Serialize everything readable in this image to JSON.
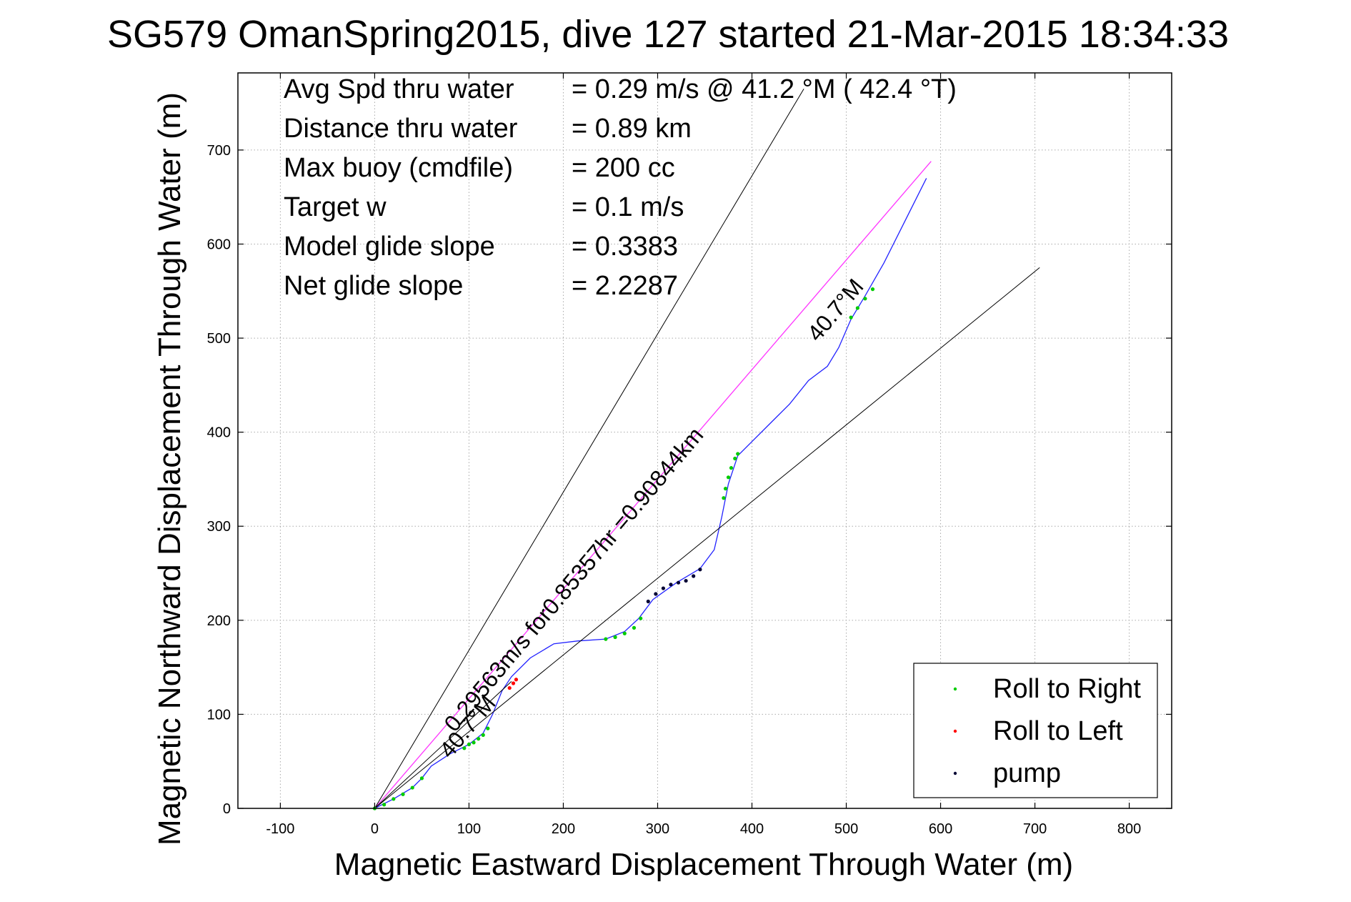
{
  "chart_data": {
    "type": "line",
    "title": "SG579 OmanSpring2015, dive 127 started 21-Mar-2015 18:34:33",
    "xlabel": "Magnetic Eastward Displacement Through Water (m)",
    "ylabel": "Magnetic Northward Displacement Through Water (m)",
    "xlim": [
      -145,
      845
    ],
    "ylim": [
      0,
      782
    ],
    "xticks": [
      -100,
      0,
      100,
      200,
      300,
      400,
      500,
      600,
      700,
      800
    ],
    "yticks": [
      0,
      100,
      200,
      300,
      400,
      500,
      600,
      700
    ],
    "grid": true,
    "legend_placement": "bottom-right",
    "stats": [
      {
        "label": "Avg Spd thru water",
        "value": "=  0.29 m/s @  41.2 °M ( 42.4 °T)"
      },
      {
        "label": "Distance thru water",
        "value": "=  0.89 km"
      },
      {
        "label": "Max buoy (cmdfile)",
        "value": "= 200 cc"
      },
      {
        "label": "Target w",
        "value": "= 0.1 m/s"
      },
      {
        "label": "Model glide slope",
        "value": "= 0.3383"
      },
      {
        "label": "Net glide slope",
        "value": "= 2.2287"
      }
    ],
    "annotations": [
      {
        "text": "0.29563m/s for0.85357hr =0.90844km",
        "x": 85,
        "y": 80,
        "angle_deg": 50
      },
      {
        "text": "40.7°M",
        "x": 80,
        "y": 52,
        "angle_deg": 50
      },
      {
        "text": "40.7°M",
        "x": 470,
        "y": 495,
        "angle_deg": 50
      }
    ],
    "series": [
      {
        "name": "",
        "style": "line",
        "color": "#2222ff",
        "x": [
          0,
          20,
          40,
          50,
          60,
          80,
          100,
          115,
          125,
          135,
          145,
          165,
          190,
          215,
          245,
          265,
          280,
          295,
          320,
          345,
          360,
          368,
          375,
          385,
          400,
          420,
          440,
          460,
          480,
          492,
          505,
          520,
          540,
          560,
          575,
          585
        ],
        "y": [
          0,
          10,
          22,
          32,
          45,
          58,
          68,
          80,
          100,
          125,
          140,
          160,
          175,
          178,
          180,
          188,
          202,
          222,
          240,
          255,
          275,
          310,
          345,
          375,
          390,
          410,
          430,
          455,
          470,
          490,
          520,
          545,
          580,
          620,
          650,
          670
        ]
      },
      {
        "name": "",
        "style": "line",
        "color": "#ff33ff",
        "x": [
          0,
          590
        ],
        "y": [
          0,
          688
        ]
      },
      {
        "name": "",
        "style": "line",
        "color": "#000000",
        "x": [
          0,
          455
        ],
        "y": [
          0,
          765
        ]
      },
      {
        "name": "",
        "style": "line",
        "color": "#000000",
        "x": [
          0,
          705
        ],
        "y": [
          0,
          575
        ]
      },
      {
        "name": "",
        "style": "line",
        "color": "#000000",
        "x": [
          0,
          145
        ],
        "y": [
          0,
          135
        ]
      },
      {
        "name": "Roll to Right",
        "style": "markers",
        "color": "#00cc00",
        "x": [
          0,
          10,
          20,
          30,
          40,
          50,
          95,
          100,
          105,
          110,
          115,
          120,
          245,
          255,
          265,
          275,
          282,
          370,
          372,
          375,
          378,
          382,
          385,
          505,
          512,
          520,
          528
        ],
        "y": [
          0,
          4,
          10,
          15,
          22,
          32,
          64,
          68,
          70,
          74,
          78,
          85,
          180,
          182,
          186,
          192,
          202,
          330,
          340,
          352,
          362,
          372,
          377,
          522,
          532,
          542,
          552
        ]
      },
      {
        "name": "Roll to Left",
        "style": "markers",
        "color": "#ff0000",
        "x": [
          143,
          147,
          150
        ],
        "y": [
          128,
          133,
          137
        ]
      },
      {
        "name": "pump",
        "style": "markers",
        "color": "#000033",
        "x": [
          290,
          298,
          306,
          314,
          322,
          330,
          338,
          345
        ],
        "y": [
          220,
          228,
          234,
          238,
          240,
          242,
          247,
          254
        ]
      }
    ]
  }
}
